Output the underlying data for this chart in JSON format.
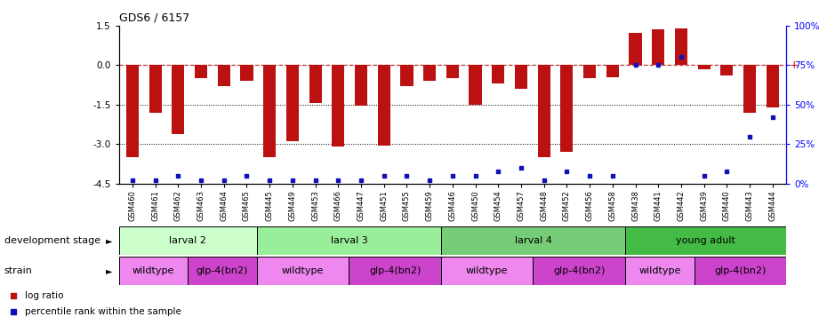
{
  "title": "GDS6 / 6157",
  "samples": [
    "GSM460",
    "GSM461",
    "GSM462",
    "GSM463",
    "GSM464",
    "GSM465",
    "GSM445",
    "GSM449",
    "GSM453",
    "GSM466",
    "GSM447",
    "GSM451",
    "GSM455",
    "GSM459",
    "GSM446",
    "GSM450",
    "GSM454",
    "GSM457",
    "GSM448",
    "GSM452",
    "GSM456",
    "GSM458",
    "GSM438",
    "GSM441",
    "GSM442",
    "GSM439",
    "GSM440",
    "GSM443",
    "GSM444"
  ],
  "log_ratio": [
    -3.5,
    -1.8,
    -2.6,
    -0.5,
    -0.8,
    -0.6,
    -3.5,
    -2.9,
    -1.45,
    -3.1,
    -1.55,
    -3.05,
    -0.8,
    -0.6,
    -0.5,
    -1.5,
    -0.7,
    -0.9,
    -3.5,
    -3.3,
    -0.5,
    -0.45,
    1.2,
    1.35,
    1.4,
    -0.15,
    -0.4,
    -1.8,
    -1.6
  ],
  "percentile": [
    2,
    2,
    5,
    2,
    2,
    5,
    2,
    2,
    2,
    2,
    2,
    5,
    5,
    2,
    5,
    5,
    8,
    10,
    2,
    8,
    5,
    5,
    75,
    75,
    80,
    5,
    8,
    30,
    42
  ],
  "ylim_left": [
    -4.5,
    1.5
  ],
  "ylim_right": [
    0,
    100
  ],
  "y_ticks_left": [
    -4.5,
    -3.0,
    -1.5,
    0.0,
    1.5
  ],
  "y_ticks_right": [
    0,
    25,
    50,
    75,
    100
  ],
  "bar_color": "#bb1111",
  "percentile_color": "#1111bb",
  "dev_stages": [
    {
      "label": "larval 2",
      "start": 0,
      "end": 6,
      "color": "#ccffcc"
    },
    {
      "label": "larval 3",
      "start": 6,
      "end": 14,
      "color": "#99ee99"
    },
    {
      "label": "larval 4",
      "start": 14,
      "end": 22,
      "color": "#77cc77"
    },
    {
      "label": "young adult",
      "start": 22,
      "end": 29,
      "color": "#44bb44"
    }
  ],
  "strains": [
    {
      "label": "wildtype",
      "start": 0,
      "end": 3,
      "color": "#ee88ee"
    },
    {
      "label": "glp-4(bn2)",
      "start": 3,
      "end": 6,
      "color": "#cc44cc"
    },
    {
      "label": "wildtype",
      "start": 6,
      "end": 10,
      "color": "#ee88ee"
    },
    {
      "label": "glp-4(bn2)",
      "start": 10,
      "end": 14,
      "color": "#cc44cc"
    },
    {
      "label": "wildtype",
      "start": 14,
      "end": 18,
      "color": "#ee88ee"
    },
    {
      "label": "glp-4(bn2)",
      "start": 18,
      "end": 22,
      "color": "#cc44cc"
    },
    {
      "label": "wildtype",
      "start": 22,
      "end": 25,
      "color": "#ee88ee"
    },
    {
      "label": "glp-4(bn2)",
      "start": 25,
      "end": 29,
      "color": "#cc44cc"
    }
  ],
  "dev_label": "development stage",
  "strain_label": "strain",
  "legend_log": "log ratio",
  "legend_pct": "percentile rank within the sample"
}
